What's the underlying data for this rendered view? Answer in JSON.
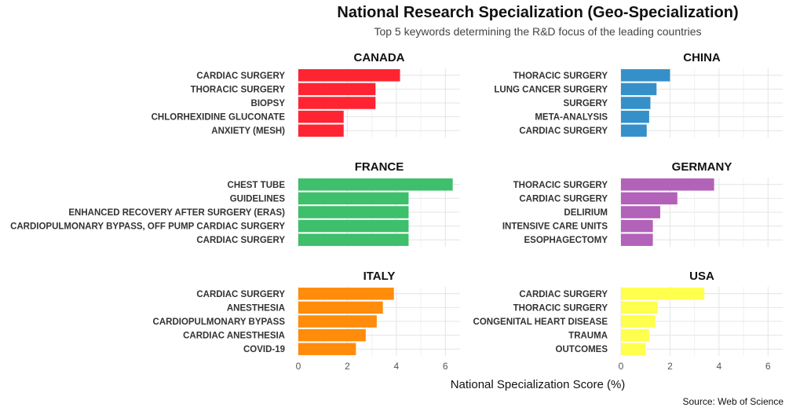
{
  "chart_data": {
    "type": "bar",
    "orientation": "horizontal",
    "title": "National Research Specialization (Geo-Specialization)",
    "subtitle": "Top 5 keywords determining the R&D focus of the leading countries",
    "xlabel": "National Specialization Score (%)",
    "ylabel": "",
    "xlim": [
      0,
      6.6
    ],
    "xticks": [
      0,
      2,
      4,
      6
    ],
    "caption": "Source: Web of Science",
    "grid": true,
    "legend": "none",
    "facets": [
      {
        "name": "CANADA",
        "color": "#ff2432",
        "categories": [
          "CARDIAC SURGERY",
          "THORACIC SURGERY",
          "BIOPSY",
          "CHLORHEXIDINE GLUCONATE",
          "ANXIETY (MESH)"
        ],
        "values": [
          4.15,
          3.15,
          3.15,
          1.85,
          1.85
        ]
      },
      {
        "name": "CHINA",
        "color": "#3590c9",
        "categories": [
          "THORACIC SURGERY",
          "LUNG CANCER SURGERY",
          "SURGERY",
          "META-ANALYSIS",
          "CARDIAC SURGERY"
        ],
        "values": [
          2.0,
          1.45,
          1.2,
          1.15,
          1.05
        ]
      },
      {
        "name": "FRANCE",
        "color": "#3dbf6b",
        "categories": [
          "CHEST TUBE",
          "GUIDELINES",
          "ENHANCED RECOVERY AFTER SURGERY (ERAS)",
          "CARDIOPULMONARY BYPASS, OFF PUMP CARDIAC SURGERY",
          "CARDIAC SURGERY"
        ],
        "values": [
          6.3,
          4.5,
          4.5,
          4.5,
          4.5
        ]
      },
      {
        "name": "GERMANY",
        "color": "#b262b8",
        "categories": [
          "THORACIC SURGERY",
          "CARDIAC SURGERY",
          "DELIRIUM",
          "INTENSIVE CARE UNITS",
          "ESOPHAGECTOMY"
        ],
        "values": [
          3.8,
          2.3,
          1.6,
          1.3,
          1.3
        ]
      },
      {
        "name": "ITALY",
        "color": "#ff8c0a",
        "categories": [
          "CARDIAC SURGERY",
          "ANESTHESIA",
          "CARDIOPULMONARY BYPASS",
          "CARDIAC ANESTHESIA",
          "COVID-19"
        ],
        "values": [
          3.9,
          3.45,
          3.2,
          2.75,
          2.35
        ]
      },
      {
        "name": "USA",
        "color": "#ffff4d",
        "categories": [
          "CARDIAC SURGERY",
          "THORACIC SURGERY",
          "CONGENITAL HEART DISEASE",
          "TRAUMA",
          "OUTCOMES"
        ],
        "values": [
          3.4,
          1.5,
          1.4,
          1.15,
          1.0
        ]
      }
    ]
  }
}
